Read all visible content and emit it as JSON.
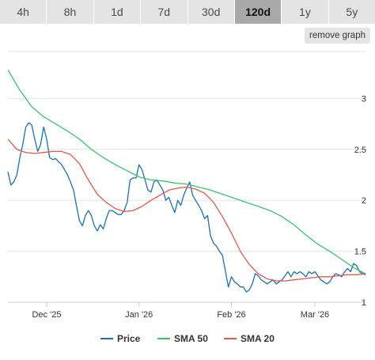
{
  "timeframe_tabs": [
    {
      "label": "4h",
      "active": false
    },
    {
      "label": "8h",
      "active": false
    },
    {
      "label": "1d",
      "active": false
    },
    {
      "label": "7d",
      "active": false
    },
    {
      "label": "30d",
      "active": false
    },
    {
      "label": "120d",
      "active": true
    },
    {
      "label": "1y",
      "active": false
    },
    {
      "label": "5y",
      "active": false
    }
  ],
  "remove_graph_label": "remove graph",
  "chart_data": {
    "type": "line",
    "title": "",
    "xlabel": "",
    "ylabel": "",
    "x_ticks": [
      {
        "label": "Dec '25",
        "day": 13
      },
      {
        "label": "Jan '26",
        "day": 44
      },
      {
        "label": "Feb '26",
        "day": 75
      },
      {
        "label": "Mar '26",
        "day": 103
      }
    ],
    "y_ticks": [
      1,
      1.5,
      2,
      2.5,
      3
    ],
    "xlim": [
      0,
      120
    ],
    "ylim": [
      1,
      3.5
    ],
    "grid": true,
    "legend_position": "bottom",
    "series": [
      {
        "name": "Price",
        "color": "#1f6fae",
        "x": [
          0,
          1,
          2,
          3,
          4,
          5,
          6,
          7,
          8,
          9,
          10,
          11,
          12,
          13,
          14,
          15,
          16,
          17,
          18,
          19,
          20,
          21,
          22,
          23,
          24,
          25,
          26,
          27,
          28,
          29,
          30,
          31,
          32,
          33,
          34,
          35,
          36,
          37,
          38,
          39,
          40,
          41,
          42,
          43,
          44,
          45,
          46,
          47,
          48,
          49,
          50,
          51,
          52,
          53,
          54,
          55,
          56,
          57,
          58,
          59,
          60,
          61,
          62,
          63,
          64,
          65,
          66,
          67,
          68,
          69,
          70,
          71,
          72,
          73,
          74,
          75,
          76,
          77,
          78,
          79,
          80,
          81,
          82,
          83,
          84,
          85,
          86,
          87,
          88,
          89,
          90,
          91,
          92,
          93,
          94,
          95,
          96,
          97,
          98,
          99,
          100,
          101,
          102,
          103,
          104,
          105,
          106,
          107,
          108,
          109,
          110,
          111,
          112,
          113,
          114,
          115,
          116,
          117,
          118,
          119,
          120
        ],
        "y": [
          2.28,
          2.15,
          2.18,
          2.25,
          2.42,
          2.55,
          2.72,
          2.76,
          2.74,
          2.6,
          2.48,
          2.55,
          2.72,
          2.6,
          2.42,
          2.4,
          2.41,
          2.38,
          2.35,
          2.3,
          2.25,
          2.18,
          2.1,
          1.95,
          1.8,
          1.75,
          1.85,
          1.9,
          1.85,
          1.75,
          1.7,
          1.76,
          1.72,
          1.82,
          1.9,
          1.9,
          1.88,
          1.86,
          1.86,
          1.9,
          1.98,
          2.2,
          2.22,
          2.22,
          2.35,
          2.3,
          2.2,
          2.1,
          2.08,
          2.18,
          2.2,
          2.15,
          2.1,
          2.0,
          2.03,
          1.95,
          1.88,
          2.0,
          1.95,
          2.05,
          2.12,
          2.18,
          2.05,
          2.0,
          1.95,
          1.9,
          1.82,
          1.85,
          1.65,
          1.58,
          1.55,
          1.5,
          1.46,
          1.3,
          1.15,
          1.25,
          1.2,
          1.18,
          1.15,
          1.15,
          1.1,
          1.12,
          1.18,
          1.28,
          1.26,
          1.22,
          1.2,
          1.18,
          1.2,
          1.22,
          1.18,
          1.2,
          1.22,
          1.26,
          1.3,
          1.25,
          1.3,
          1.28,
          1.3,
          1.28,
          1.25,
          1.3,
          1.28,
          1.3,
          1.26,
          1.22,
          1.2,
          1.18,
          1.2,
          1.25,
          1.28,
          1.27,
          1.25,
          1.3,
          1.33,
          1.3,
          1.38,
          1.36,
          1.3,
          1.28,
          1.27
        ]
      },
      {
        "name": "SMA 50",
        "color": "#3cc26f",
        "x": [
          0,
          4,
          8,
          12,
          16,
          20,
          24,
          28,
          32,
          36,
          40,
          44,
          48,
          52,
          56,
          60,
          64,
          68,
          72,
          76,
          80,
          84,
          88,
          92,
          96,
          100,
          104,
          108,
          112,
          116,
          120
        ],
        "y": [
          3.28,
          3.08,
          2.92,
          2.82,
          2.75,
          2.68,
          2.6,
          2.5,
          2.42,
          2.35,
          2.29,
          2.23,
          2.2,
          2.19,
          2.17,
          2.16,
          2.13,
          2.1,
          2.06,
          2.02,
          1.98,
          1.94,
          1.9,
          1.84,
          1.76,
          1.66,
          1.57,
          1.5,
          1.42,
          1.34,
          1.28
        ]
      },
      {
        "name": "SMA 20",
        "color": "#e05a4f",
        "x": [
          0,
          3,
          6,
          9,
          12,
          15,
          18,
          21,
          24,
          27,
          30,
          33,
          36,
          39,
          42,
          45,
          48,
          51,
          54,
          57,
          60,
          63,
          66,
          69,
          72,
          75,
          78,
          81,
          84,
          87,
          90,
          93,
          96,
          99,
          102,
          105,
          108,
          111,
          114,
          117,
          120
        ],
        "y": [
          2.6,
          2.5,
          2.47,
          2.46,
          2.47,
          2.48,
          2.48,
          2.45,
          2.36,
          2.2,
          2.06,
          1.98,
          1.92,
          1.89,
          1.9,
          1.94,
          2.0,
          2.05,
          2.1,
          2.12,
          2.13,
          2.11,
          2.07,
          1.98,
          1.84,
          1.68,
          1.5,
          1.37,
          1.28,
          1.23,
          1.21,
          1.21,
          1.22,
          1.23,
          1.24,
          1.25,
          1.25,
          1.26,
          1.27,
          1.27,
          1.28
        ]
      }
    ]
  }
}
